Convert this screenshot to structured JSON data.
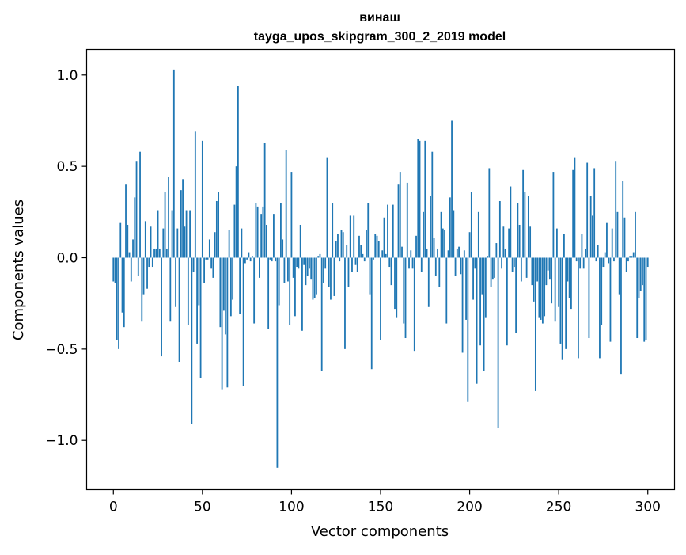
{
  "chart_data": {
    "type": "bar",
    "title_line1": "винаш",
    "title_line2": "tayga_upos_skipgram_300_2_2019 model",
    "xlabel": "Vector components",
    "ylabel": "Components values",
    "xlim": [
      -15,
      315
    ],
    "ylim": [
      -1.27,
      1.14
    ],
    "xticks": [
      0,
      50,
      100,
      150,
      200,
      250,
      300
    ],
    "xtick_labels": [
      "0",
      "50",
      "100",
      "150",
      "200",
      "250",
      "300"
    ],
    "yticks": [
      -1.0,
      -0.5,
      0.0,
      0.5,
      1.0
    ],
    "ytick_labels": [
      "−1.0",
      "−0.5",
      "0.0",
      "0.5",
      "1.0"
    ],
    "grid": false,
    "bar_color": "#1f77b4",
    "values": [
      -0.13,
      -0.14,
      -0.45,
      -0.5,
      0.19,
      -0.3,
      -0.38,
      0.4,
      0.18,
      0.03,
      -0.13,
      0.1,
      0.33,
      0.53,
      -0.1,
      0.58,
      -0.35,
      -0.2,
      0.2,
      -0.17,
      -0.05,
      0.17,
      -0.05,
      0.05,
      0.05,
      0.26,
      0.05,
      -0.54,
      0.16,
      0.36,
      0.05,
      0.44,
      -0.35,
      0.26,
      1.03,
      -0.27,
      0.16,
      -0.57,
      0.37,
      0.43,
      0.17,
      0.26,
      -0.37,
      0.26,
      -0.91,
      -0.08,
      0.69,
      -0.47,
      -0.26,
      -0.66,
      0.64,
      -0.14,
      -0.01,
      -0.01,
      0.1,
      -0.06,
      -0.11,
      0.14,
      0.31,
      0.36,
      -0.38,
      -0.72,
      -0.29,
      -0.42,
      -0.71,
      0.15,
      -0.32,
      -0.23,
      0.29,
      0.5,
      0.94,
      -0.31,
      0.16,
      -0.7,
      -0.03,
      -0.01,
      0.03,
      -0.02,
      0.01,
      -0.36,
      0.3,
      0.28,
      -0.11,
      0.24,
      0.28,
      0.63,
      0.18,
      -0.39,
      -0.01,
      -0.02,
      0.24,
      -0.02,
      -1.15,
      -0.26,
      0.3,
      0.1,
      -0.14,
      0.59,
      -0.13,
      -0.37,
      0.47,
      -0.11,
      -0.32,
      -0.05,
      -0.06,
      0.18,
      -0.4,
      -0.04,
      -0.15,
      -0.1,
      -0.06,
      -0.12,
      -0.23,
      -0.22,
      -0.2,
      0.01,
      0.02,
      -0.62,
      -0.14,
      -0.06,
      0.55,
      -0.16,
      -0.23,
      0.3,
      -0.21,
      0.09,
      0.13,
      -0.02,
      0.15,
      0.14,
      -0.5,
      0.07,
      -0.16,
      0.23,
      -0.08,
      0.23,
      -0.04,
      -0.08,
      0.12,
      0.07,
      0.02,
      -0.02,
      0.15,
      0.3,
      -0.2,
      -0.61,
      -0.01,
      0.13,
      0.12,
      0.09,
      -0.45,
      0.04,
      0.22,
      0.02,
      0.29,
      -0.05,
      -0.15,
      0.29,
      -0.28,
      -0.33,
      0.4,
      0.47,
      0.06,
      -0.36,
      -0.44,
      0.41,
      -0.06,
      0.04,
      -0.06,
      -0.51,
      0.12,
      0.65,
      0.64,
      -0.08,
      0.25,
      0.64,
      0.05,
      -0.27,
      0.34,
      0.58,
      0.11,
      -0.1,
      0.05,
      -0.16,
      0.25,
      0.16,
      0.15,
      -0.36,
      0.04,
      0.33,
      0.75,
      0.26,
      -0.1,
      0.05,
      0.06,
      -0.09,
      -0.52,
      0.04,
      -0.34,
      -0.79,
      0.14,
      0.36,
      -0.23,
      -0.06,
      -0.69,
      0.25,
      -0.48,
      -0.2,
      -0.62,
      -0.33,
      0.01,
      0.49,
      -0.16,
      -0.12,
      -0.11,
      0.08,
      -0.93,
      0.31,
      -0.06,
      0.17,
      0.05,
      -0.48,
      0.16,
      0.39,
      -0.08,
      -0.05,
      -0.41,
      0.3,
      0.18,
      -0.13,
      0.48,
      0.36,
      -0.11,
      0.34,
      0.17,
      -0.15,
      -0.24,
      -0.73,
      -0.13,
      -0.33,
      -0.34,
      -0.36,
      -0.32,
      -0.15,
      -0.07,
      -0.12,
      -0.25,
      0.47,
      -0.35,
      0.16,
      -0.27,
      -0.47,
      -0.56,
      0.13,
      -0.5,
      -0.13,
      -0.22,
      -0.28,
      0.48,
      0.55,
      -0.02,
      -0.55,
      -0.06,
      0.13,
      -0.06,
      0.05,
      0.52,
      -0.44,
      0.34,
      0.23,
      0.49,
      -0.02,
      0.07,
      -0.55,
      -0.37,
      -0.05,
      0.03,
      0.19,
      -0.03,
      -0.46,
      0.16,
      -0.02,
      0.53,
      0.25,
      -0.2,
      -0.64,
      0.42,
      0.22,
      -0.08,
      -0.02,
      0.01,
      0.01,
      0.03,
      0.25,
      -0.44,
      -0.22,
      -0.18,
      -0.15,
      -0.46,
      -0.45,
      -0.05
    ]
  }
}
